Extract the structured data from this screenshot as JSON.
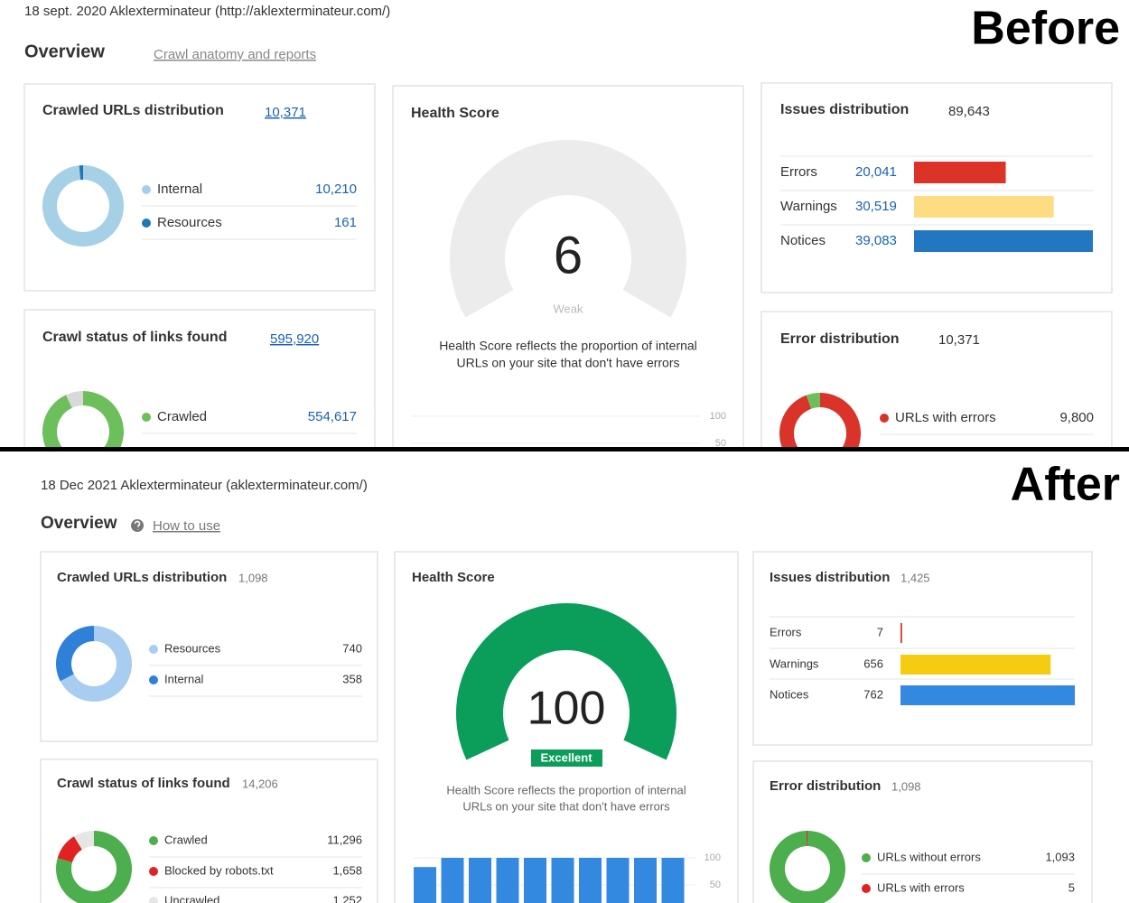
{
  "before": {
    "label": "Before",
    "date": "18 sept. 2020 Aklexterminateur (http://aklexterminateur.com/)",
    "overview": "Overview",
    "link": "Crawl anatomy and reports",
    "crawled_urls": {
      "title": "Crawled URLs distribution",
      "total": "10,371",
      "items": [
        {
          "name": "Internal",
          "value": "10,210",
          "color": "#a6d0e6"
        },
        {
          "name": "Resources",
          "value": "161",
          "color": "#1f78b4"
        }
      ]
    },
    "crawl_status": {
      "title": "Crawl status of links found",
      "total": "595,920",
      "rest_color": "#d9d9d9",
      "items": [
        {
          "name": "Crawled",
          "value": "554,617",
          "color": "#6cbf5b"
        }
      ]
    },
    "health": {
      "title": "Health Score",
      "score": "6",
      "rating": "Weak",
      "color": "#ececec",
      "track_color": "#ececec",
      "description": [
        "Health Score reflects the proportion of internal",
        "URLs on your site that don't have errors"
      ],
      "ticks": [
        100,
        50
      ]
    },
    "issues": {
      "title": "Issues distribution",
      "total": "89,643",
      "items": [
        {
          "name": "Errors",
          "value": "20,041",
          "color": "#dc3328"
        },
        {
          "name": "Warnings",
          "value": "30,519",
          "color": "#fddc82"
        },
        {
          "name": "Notices",
          "value": "39,083",
          "color": "#2277c0"
        }
      ]
    },
    "error_distribution": {
      "title": "Error distribution",
      "total": "10,371",
      "rest_color": "#6cbf5b",
      "items": [
        {
          "name": "URLs with errors",
          "value": "9,800",
          "color": "#d9332a"
        }
      ]
    }
  },
  "after": {
    "label": "After",
    "date": "18 Dec 2021 Aklexterminateur (aklexterminateur.com/)",
    "overview": "Overview",
    "link": "How to use",
    "crawled_urls": {
      "title": "Crawled URLs distribution",
      "total": "1,098",
      "items": [
        {
          "name": "Resources",
          "value": "740",
          "color": "#a8cdf0"
        },
        {
          "name": "Internal",
          "value": "358",
          "color": "#2f80d9"
        }
      ]
    },
    "crawl_status": {
      "title": "Crawl status of links found",
      "total": "14,206",
      "items": [
        {
          "name": "Crawled",
          "value": "11,296",
          "color": "#4cae4c"
        },
        {
          "name": "Blocked by robots.txt",
          "value": "1,658",
          "color": "#e02222"
        },
        {
          "name": "Uncrawled",
          "value": "1,252",
          "color": "#e6e6e6"
        }
      ]
    },
    "health": {
      "title": "Health Score",
      "score": "100",
      "rating": "Excellent",
      "color": "#0a9e5a",
      "track_color": "#ececec",
      "description": [
        "Health Score reflects the proportion of internal",
        "URLs on your site that don't have errors"
      ],
      "ticks": [
        100,
        50
      ],
      "history": [
        83,
        100,
        100,
        100,
        100,
        100,
        100,
        100,
        100,
        100
      ],
      "history_color": "#3388e0"
    },
    "issues": {
      "title": "Issues distribution",
      "total": "1,425",
      "items": [
        {
          "name": "Errors",
          "value": "7",
          "color": "#e03030"
        },
        {
          "name": "Warnings",
          "value": "656",
          "color": "#f5cc0f"
        },
        {
          "name": "Notices",
          "value": "762",
          "color": "#3388e0"
        }
      ]
    },
    "error_distribution": {
      "title": "Error distribution",
      "total": "1,098",
      "items": [
        {
          "name": "URLs without errors",
          "value": "1,093",
          "color": "#4cae4c"
        },
        {
          "name": "URLs with errors",
          "value": "5",
          "color": "#e02222"
        }
      ]
    }
  }
}
